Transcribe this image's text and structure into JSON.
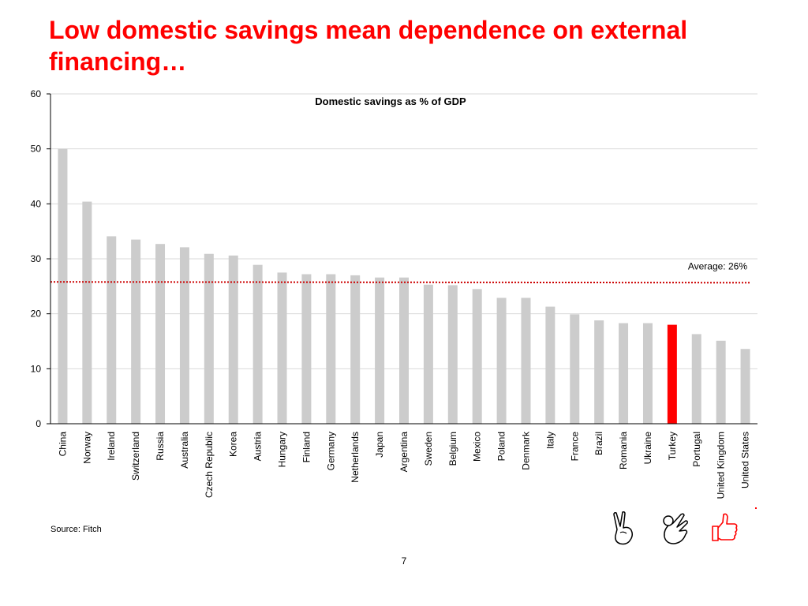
{
  "slide": {
    "title": "Low domestic savings mean dependence on external financing…",
    "source": "Source: Fitch",
    "page_number": "7",
    "icons": [
      "victory-hand-icon",
      "ok-hand-icon",
      "thumbs-up-icon"
    ]
  },
  "colors": {
    "title": "#ff0000",
    "bar": "#cccccc",
    "highlight_bar": "#ff0000",
    "average_line": "#cc0000",
    "grid": "#d9d9d9",
    "axis": "#000000"
  },
  "chart_data": {
    "type": "bar",
    "title": "Domestic savings as % of GDP",
    "xlabel": "",
    "ylabel": "",
    "ylim": [
      0,
      60
    ],
    "yticks": [
      0,
      10,
      20,
      30,
      40,
      50,
      60
    ],
    "grid": true,
    "legend": "none",
    "categories": [
      "China",
      "Norway",
      "Ireland",
      "Switzerland",
      "Russia",
      "Australia",
      "Czech Republic",
      "Korea",
      "Austria",
      "Hungary",
      "Finland",
      "Germany",
      "Netherlands",
      "Japan",
      "Argentina",
      "Sweden",
      "Belgium",
      "Mexico",
      "Poland",
      "Denmark",
      "Italy",
      "France",
      "Brazil",
      "Romania",
      "Ukraine",
      "Turkey",
      "Portugal",
      "United Kingdom",
      "United States"
    ],
    "values": [
      50,
      40.4,
      34.1,
      33.5,
      32.7,
      32.1,
      30.9,
      30.6,
      28.9,
      27.5,
      27.2,
      27.2,
      27.0,
      26.6,
      26.6,
      25.3,
      25.2,
      24.5,
      22.9,
      22.9,
      21.3,
      19.9,
      18.8,
      18.3,
      18.3,
      18.0,
      16.3,
      15.1,
      13.6
    ],
    "highlight": "Turkey",
    "average": {
      "value": 25.8,
      "label": "Average: 26%"
    }
  }
}
